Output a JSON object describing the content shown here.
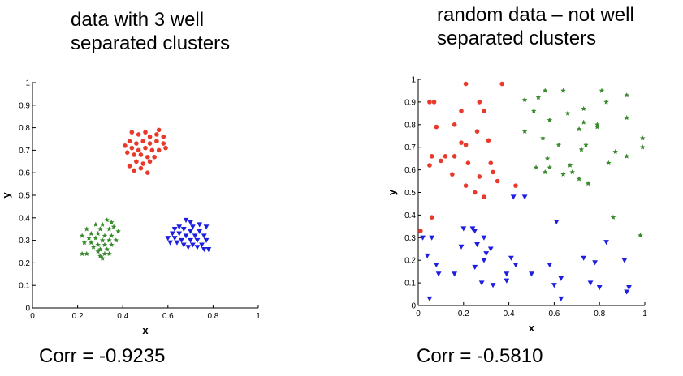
{
  "charts": {
    "left": {
      "title": "data with 3 well\nseparated clusters",
      "corr_text": "Corr = -0.9235"
    },
    "right": {
      "title": "random data – not well\nseparated clusters",
      "corr_text": "Corr = -0.5810"
    }
  },
  "colors": {
    "red": "#e8392a",
    "green": "#3a8a2e",
    "blue": "#1d1ee0"
  },
  "chart_data": [
    {
      "type": "scatter",
      "xlabel": "x",
      "ylabel": "y",
      "xlim": [
        0,
        1
      ],
      "ylim": [
        0,
        1
      ],
      "xticks": [
        "0",
        "0.2",
        "0.4",
        "0.6",
        "0.8",
        "1"
      ],
      "yticks": [
        "0",
        "0.1",
        "0.2",
        "0.3",
        "0.4",
        "0.5",
        "0.6",
        "0.7",
        "0.8",
        "0.9",
        "1"
      ],
      "grid": false,
      "series": [
        {
          "color": "#e8392a",
          "marker": "circle",
          "points": [
            [
              0.44,
              0.78
            ],
            [
              0.47,
              0.77
            ],
            [
              0.5,
              0.78
            ],
            [
              0.55,
              0.77
            ],
            [
              0.58,
              0.76
            ],
            [
              0.56,
              0.79
            ],
            [
              0.52,
              0.76
            ],
            [
              0.43,
              0.74
            ],
            [
              0.46,
              0.73
            ],
            [
              0.49,
              0.74
            ],
            [
              0.52,
              0.73
            ],
            [
              0.55,
              0.74
            ],
            [
              0.58,
              0.73
            ],
            [
              0.41,
              0.72
            ],
            [
              0.44,
              0.71
            ],
            [
              0.47,
              0.7
            ],
            [
              0.5,
              0.71
            ],
            [
              0.53,
              0.7
            ],
            [
              0.56,
              0.7
            ],
            [
              0.59,
              0.71
            ],
            [
              0.42,
              0.69
            ],
            [
              0.45,
              0.68
            ],
            [
              0.48,
              0.68
            ],
            [
              0.51,
              0.67
            ],
            [
              0.54,
              0.67
            ],
            [
              0.46,
              0.65
            ],
            [
              0.43,
              0.63
            ],
            [
              0.49,
              0.64
            ],
            [
              0.52,
              0.65
            ],
            [
              0.45,
              0.61
            ],
            [
              0.48,
              0.62
            ],
            [
              0.51,
              0.6
            ]
          ]
        },
        {
          "color": "#3a8a2e",
          "marker": "star",
          "points": [
            [
              0.33,
              0.39
            ],
            [
              0.35,
              0.38
            ],
            [
              0.31,
              0.37
            ],
            [
              0.28,
              0.37
            ],
            [
              0.36,
              0.36
            ],
            [
              0.24,
              0.35
            ],
            [
              0.3,
              0.35
            ],
            [
              0.34,
              0.35
            ],
            [
              0.38,
              0.34
            ],
            [
              0.26,
              0.33
            ],
            [
              0.29,
              0.33
            ],
            [
              0.32,
              0.32
            ],
            [
              0.35,
              0.32
            ],
            [
              0.22,
              0.32
            ],
            [
              0.25,
              0.31
            ],
            [
              0.28,
              0.31
            ],
            [
              0.31,
              0.3
            ],
            [
              0.34,
              0.3
            ],
            [
              0.37,
              0.3
            ],
            [
              0.23,
              0.29
            ],
            [
              0.26,
              0.29
            ],
            [
              0.29,
              0.28
            ],
            [
              0.32,
              0.28
            ],
            [
              0.35,
              0.28
            ],
            [
              0.27,
              0.27
            ],
            [
              0.3,
              0.26
            ],
            [
              0.33,
              0.26
            ],
            [
              0.29,
              0.25
            ],
            [
              0.32,
              0.24
            ],
            [
              0.3,
              0.23
            ],
            [
              0.31,
              0.22
            ],
            [
              0.22,
              0.24
            ],
            [
              0.24,
              0.24
            ],
            [
              0.34,
              0.24
            ]
          ]
        },
        {
          "color": "#1d1ee0",
          "marker": "triangle-down",
          "points": [
            [
              0.68,
              0.39
            ],
            [
              0.7,
              0.38
            ],
            [
              0.74,
              0.37
            ],
            [
              0.77,
              0.36
            ],
            [
              0.65,
              0.36
            ],
            [
              0.71,
              0.36
            ],
            [
              0.63,
              0.35
            ],
            [
              0.67,
              0.35
            ],
            [
              0.7,
              0.34
            ],
            [
              0.74,
              0.34
            ],
            [
              0.62,
              0.33
            ],
            [
              0.65,
              0.33
            ],
            [
              0.68,
              0.32
            ],
            [
              0.72,
              0.32
            ],
            [
              0.76,
              0.32
            ],
            [
              0.6,
              0.31
            ],
            [
              0.63,
              0.31
            ],
            [
              0.66,
              0.3
            ],
            [
              0.7,
              0.3
            ],
            [
              0.73,
              0.3
            ],
            [
              0.77,
              0.3
            ],
            [
              0.64,
              0.29
            ],
            [
              0.67,
              0.28
            ],
            [
              0.71,
              0.28
            ],
            [
              0.75,
              0.28
            ],
            [
              0.69,
              0.27
            ],
            [
              0.73,
              0.27
            ],
            [
              0.76,
              0.26
            ],
            [
              0.78,
              0.26
            ],
            [
              0.61,
              0.29
            ]
          ]
        }
      ]
    },
    {
      "type": "scatter",
      "xlabel": "x",
      "ylabel": "y",
      "xlim": [
        0,
        1
      ],
      "ylim": [
        0,
        1
      ],
      "xticks": [
        "0",
        "0.2",
        "0.4",
        "0.6",
        "0.8",
        "1"
      ],
      "yticks": [
        "0",
        "0.1",
        "0.2",
        "0.3",
        "0.4",
        "0.5",
        "0.6",
        "0.7",
        "0.8",
        "0.9",
        "1"
      ],
      "grid": false,
      "series": [
        {
          "color": "#e8392a",
          "marker": "circle",
          "points": [
            [
              0.21,
              0.98
            ],
            [
              0.37,
              0.98
            ],
            [
              0.05,
              0.9
            ],
            [
              0.07,
              0.9
            ],
            [
              0.27,
              0.9
            ],
            [
              0.19,
              0.86
            ],
            [
              0.29,
              0.86
            ],
            [
              0.16,
              0.8
            ],
            [
              0.08,
              0.79
            ],
            [
              0.26,
              0.77
            ],
            [
              0.31,
              0.73
            ],
            [
              0.19,
              0.72
            ],
            [
              0.06,
              0.66
            ],
            [
              0.12,
              0.66
            ],
            [
              0.16,
              0.66
            ],
            [
              0.21,
              0.71
            ],
            [
              0.1,
              0.64
            ],
            [
              0.05,
              0.62
            ],
            [
              0.22,
              0.63
            ],
            [
              0.32,
              0.63
            ],
            [
              0.33,
              0.59
            ],
            [
              0.15,
              0.58
            ],
            [
              0.27,
              0.57
            ],
            [
              0.35,
              0.55
            ],
            [
              0.43,
              0.53
            ],
            [
              0.21,
              0.53
            ],
            [
              0.25,
              0.5
            ],
            [
              0.29,
              0.48
            ],
            [
              0.06,
              0.39
            ],
            [
              0.01,
              0.33
            ]
          ]
        },
        {
          "color": "#3a8a2e",
          "marker": "star",
          "points": [
            [
              0.56,
              0.95
            ],
            [
              0.64,
              0.95
            ],
            [
              0.81,
              0.95
            ],
            [
              0.92,
              0.93
            ],
            [
              0.53,
              0.92
            ],
            [
              0.47,
              0.91
            ],
            [
              0.83,
              0.9
            ],
            [
              0.73,
              0.87
            ],
            [
              0.51,
              0.86
            ],
            [
              0.66,
              0.85
            ],
            [
              0.58,
              0.82
            ],
            [
              0.73,
              0.81
            ],
            [
              0.79,
              0.8
            ],
            [
              0.92,
              0.83
            ],
            [
              0.71,
              0.78
            ],
            [
              0.47,
              0.77
            ],
            [
              0.79,
              0.79
            ],
            [
              0.55,
              0.74
            ],
            [
              0.74,
              0.71
            ],
            [
              0.62,
              0.71
            ],
            [
              0.99,
              0.74
            ],
            [
              0.72,
              0.69
            ],
            [
              0.99,
              0.7
            ],
            [
              0.87,
              0.68
            ],
            [
              0.57,
              0.65
            ],
            [
              0.92,
              0.66
            ],
            [
              0.84,
              0.63
            ],
            [
              0.67,
              0.62
            ],
            [
              0.52,
              0.61
            ],
            [
              0.56,
              0.59
            ],
            [
              0.58,
              0.61
            ],
            [
              0.64,
              0.58
            ],
            [
              0.68,
              0.59
            ],
            [
              0.71,
              0.56
            ],
            [
              0.75,
              0.54
            ],
            [
              0.86,
              0.39
            ],
            [
              0.98,
              0.31
            ]
          ]
        },
        {
          "color": "#1d1ee0",
          "marker": "triangle-down",
          "points": [
            [
              0.42,
              0.48
            ],
            [
              0.47,
              0.48
            ],
            [
              0.61,
              0.37
            ],
            [
              0.2,
              0.34
            ],
            [
              0.24,
              0.34
            ],
            [
              0.25,
              0.33
            ],
            [
              0.02,
              0.3
            ],
            [
              0.06,
              0.3
            ],
            [
              0.29,
              0.3
            ],
            [
              0.26,
              0.27
            ],
            [
              0.19,
              0.26
            ],
            [
              0.83,
              0.28
            ],
            [
              0.32,
              0.25
            ],
            [
              0.3,
              0.23
            ],
            [
              0.04,
              0.22
            ],
            [
              0.29,
              0.2
            ],
            [
              0.41,
              0.21
            ],
            [
              0.73,
              0.21
            ],
            [
              0.78,
              0.19
            ],
            [
              0.91,
              0.2
            ],
            [
              0.08,
              0.18
            ],
            [
              0.43,
              0.18
            ],
            [
              0.58,
              0.18
            ],
            [
              0.25,
              0.17
            ],
            [
              0.09,
              0.14
            ],
            [
              0.16,
              0.14
            ],
            [
              0.39,
              0.14
            ],
            [
              0.5,
              0.14
            ],
            [
              0.63,
              0.12
            ],
            [
              0.28,
              0.1
            ],
            [
              0.39,
              0.11
            ],
            [
              0.76,
              0.1
            ],
            [
              0.8,
              0.08
            ],
            [
              0.6,
              0.09
            ],
            [
              0.93,
              0.08
            ],
            [
              0.92,
              0.06
            ],
            [
              0.33,
              0.09
            ],
            [
              0.63,
              0.03
            ],
            [
              0.05,
              0.03
            ]
          ]
        }
      ]
    }
  ]
}
